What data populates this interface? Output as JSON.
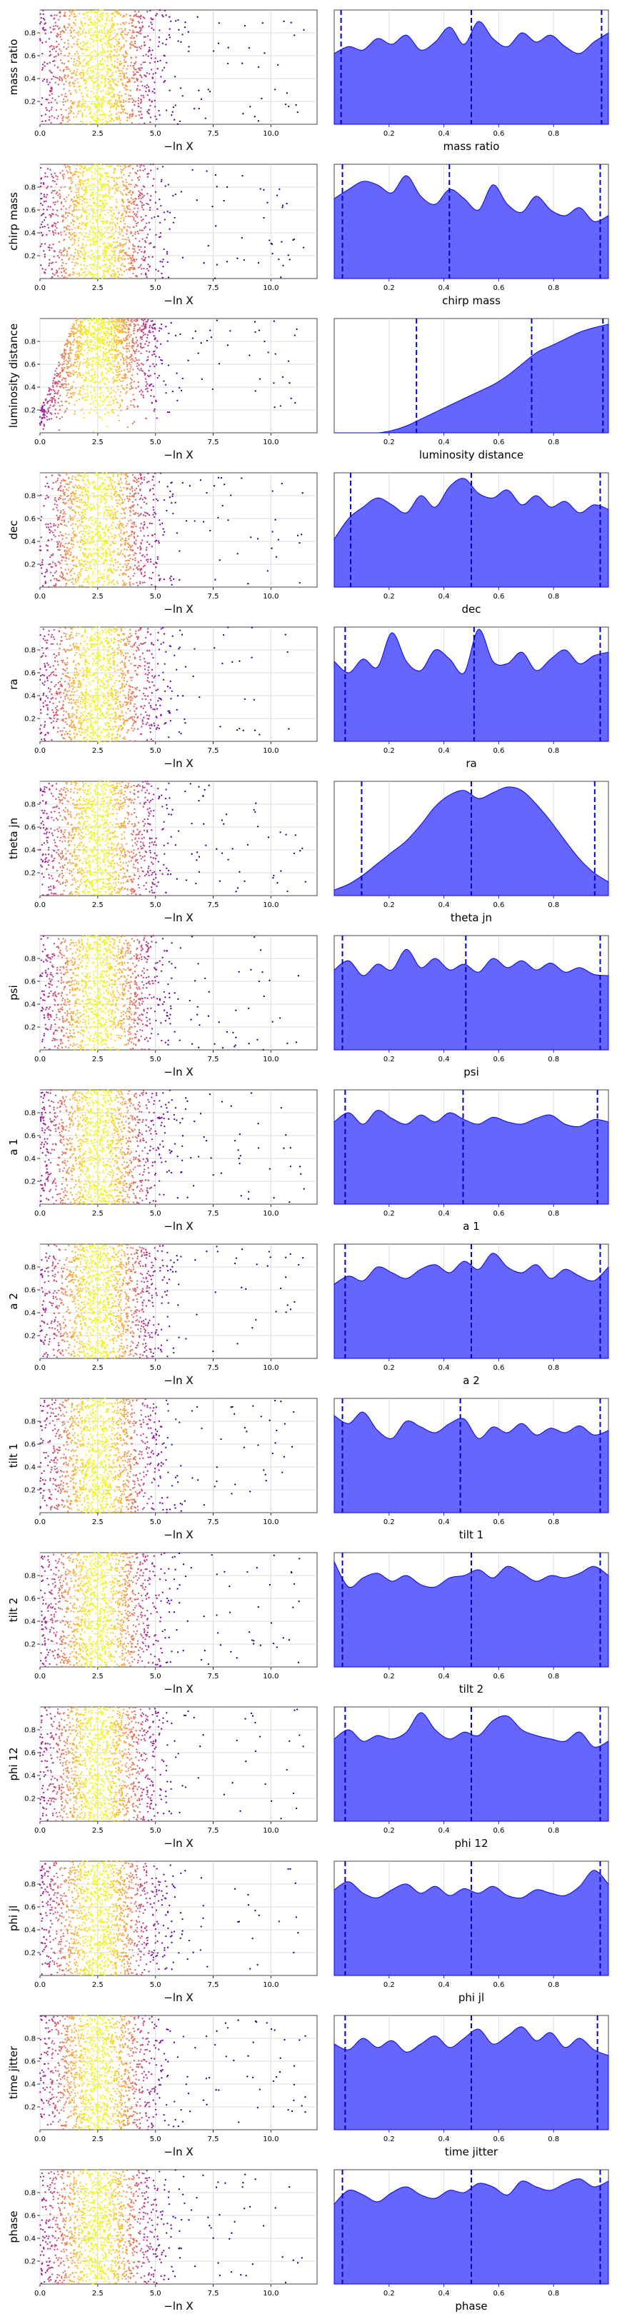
{
  "figure": {
    "scatter_xlabel": "−ln X",
    "colors": {
      "density_fill": "#6666ff",
      "density_edge": "#0000ff",
      "quantile_line": "#0000cc",
      "scatter_colormap": [
        "#0d0887",
        "#5b02a3",
        "#9a179b",
        "#cb4678",
        "#eb7852",
        "#fbb32f",
        "#f0f921"
      ]
    }
  },
  "chart_data": [
    {
      "type": "scatter",
      "ylabel": "mass ratio",
      "xlabel": "−ln X",
      "xticks": [
        "0.0",
        "2.5",
        "5.0",
        "7.5",
        "10.0"
      ],
      "yticks": [
        "0.2",
        "0.4",
        "0.6",
        "0.8"
      ],
      "xlim": [
        0,
        12
      ],
      "ylim": [
        0,
        1
      ],
      "grid": true,
      "density": {
        "type": "area",
        "xlabel": "mass ratio",
        "xticks": [
          "0.2",
          "0.4",
          "0.6",
          "0.8"
        ],
        "xlim": [
          0,
          1
        ],
        "profile": [
          0.62,
          0.68,
          0.65,
          0.75,
          0.7,
          0.78,
          0.65,
          0.72,
          0.85,
          0.7,
          0.9,
          0.75,
          0.68,
          0.8,
          0.72,
          0.78,
          0.68,
          0.62,
          0.72,
          0.8
        ],
        "quantiles": [
          0.025,
          0.5,
          0.975
        ]
      }
    },
    {
      "type": "scatter",
      "ylabel": "chirp mass",
      "xlabel": "−ln X",
      "xticks": [
        "0.0",
        "2.5",
        "5.0",
        "7.5",
        "10.0"
      ],
      "yticks": [
        "0.2",
        "0.4",
        "0.6",
        "0.8"
      ],
      "xlim": [
        0,
        12
      ],
      "ylim": [
        0,
        1
      ],
      "grid": true,
      "density": {
        "type": "area",
        "xlabel": "chirp mass",
        "xticks": [
          "0.2",
          "0.4",
          "0.6",
          "0.8"
        ],
        "xlim": [
          0,
          1
        ],
        "profile": [
          0.7,
          0.78,
          0.85,
          0.82,
          0.75,
          0.9,
          0.72,
          0.65,
          0.78,
          0.7,
          0.6,
          0.82,
          0.65,
          0.58,
          0.72,
          0.6,
          0.55,
          0.62,
          0.5,
          0.55
        ],
        "quantiles": [
          0.03,
          0.42,
          0.97
        ]
      }
    },
    {
      "type": "scatter",
      "ylabel": "luminosity distance",
      "xlabel": "−ln X",
      "xticks": [
        "0.0",
        "2.5",
        "5.0",
        "7.5",
        "10.0"
      ],
      "yticks": [
        "0.2",
        "0.4",
        "0.6",
        "0.8"
      ],
      "xlim": [
        0,
        12
      ],
      "ylim": [
        0,
        1
      ],
      "grid": true,
      "density": {
        "type": "area",
        "xlabel": "luminosity distance",
        "xticks": [
          "0.2",
          "0.4",
          "0.6",
          "0.8"
        ],
        "xlim": [
          0,
          1
        ],
        "profile": [
          0.0,
          0.0,
          0.0,
          0.0,
          0.02,
          0.06,
          0.12,
          0.18,
          0.24,
          0.3,
          0.36,
          0.42,
          0.5,
          0.6,
          0.7,
          0.76,
          0.82,
          0.88,
          0.92,
          0.95
        ],
        "quantiles": [
          0.3,
          0.72,
          0.98
        ]
      }
    },
    {
      "type": "scatter",
      "ylabel": "dec",
      "xlabel": "−ln X",
      "xticks": [
        "0.0",
        "2.5",
        "5.0",
        "7.5",
        "10.0"
      ],
      "yticks": [
        "0.2",
        "0.4",
        "0.6",
        "0.8"
      ],
      "xlim": [
        0,
        12
      ],
      "ylim": [
        0,
        1
      ],
      "grid": true,
      "density": {
        "type": "area",
        "xlabel": "dec",
        "xticks": [
          "0.2",
          "0.4",
          "0.6",
          "0.8"
        ],
        "xlim": [
          0,
          1
        ],
        "profile": [
          0.42,
          0.6,
          0.7,
          0.78,
          0.72,
          0.65,
          0.8,
          0.7,
          0.88,
          0.95,
          0.82,
          0.78,
          0.85,
          0.72,
          0.8,
          0.7,
          0.75,
          0.65,
          0.72,
          0.68
        ],
        "quantiles": [
          0.06,
          0.5,
          0.97
        ]
      }
    },
    {
      "type": "scatter",
      "ylabel": "ra",
      "xlabel": "−ln X",
      "xticks": [
        "0.0",
        "2.5",
        "5.0",
        "7.5",
        "10.0"
      ],
      "yticks": [
        "0.2",
        "0.4",
        "0.6",
        "0.8"
      ],
      "xlim": [
        0,
        12
      ],
      "ylim": [
        0,
        1
      ],
      "grid": true,
      "density": {
        "type": "area",
        "xlabel": "ra",
        "xticks": [
          "0.2",
          "0.4",
          "0.6",
          "0.8"
        ],
        "xlim": [
          0,
          1
        ],
        "profile": [
          0.7,
          0.6,
          0.72,
          0.65,
          0.95,
          0.7,
          0.62,
          0.8,
          0.72,
          0.6,
          0.98,
          0.7,
          0.68,
          0.78,
          0.62,
          0.72,
          0.8,
          0.68,
          0.75,
          0.78
        ],
        "quantiles": [
          0.04,
          0.51,
          0.97
        ]
      }
    },
    {
      "type": "scatter",
      "ylabel": "theta jn",
      "xlabel": "−ln X",
      "xticks": [
        "0.0",
        "2.5",
        "5.0",
        "7.5",
        "10.0"
      ],
      "yticks": [
        "0.2",
        "0.4",
        "0.6",
        "0.8"
      ],
      "xlim": [
        0,
        12
      ],
      "ylim": [
        0,
        1
      ],
      "grid": true,
      "density": {
        "type": "area",
        "xlabel": "theta jn",
        "xticks": [
          "0.2",
          "0.4",
          "0.6",
          "0.8"
        ],
        "xlim": [
          0,
          1
        ],
        "profile": [
          0.05,
          0.1,
          0.18,
          0.28,
          0.38,
          0.48,
          0.62,
          0.78,
          0.88,
          0.92,
          0.85,
          0.9,
          0.95,
          0.92,
          0.8,
          0.65,
          0.48,
          0.32,
          0.2,
          0.12
        ],
        "quantiles": [
          0.1,
          0.5,
          0.95
        ]
      }
    },
    {
      "type": "scatter",
      "ylabel": "psi",
      "xlabel": "−ln X",
      "xticks": [
        "0.0",
        "2.5",
        "5.0",
        "7.5",
        "10.0"
      ],
      "yticks": [
        "0.2",
        "0.4",
        "0.6",
        "0.8"
      ],
      "xlim": [
        0,
        12
      ],
      "ylim": [
        0,
        1
      ],
      "grid": true,
      "density": {
        "type": "area",
        "xlabel": "psi",
        "xticks": [
          "0.2",
          "0.4",
          "0.6",
          "0.8"
        ],
        "xlim": [
          0,
          1
        ],
        "profile": [
          0.7,
          0.78,
          0.65,
          0.75,
          0.7,
          0.88,
          0.72,
          0.8,
          0.7,
          0.75,
          0.68,
          0.8,
          0.72,
          0.78,
          0.7,
          0.76,
          0.68,
          0.72,
          0.66,
          0.65
        ],
        "quantiles": [
          0.03,
          0.48,
          0.97
        ]
      }
    },
    {
      "type": "scatter",
      "ylabel": "a 1",
      "xlabel": "−ln X",
      "xticks": [
        "0.0",
        "2.5",
        "5.0",
        "7.5",
        "10.0"
      ],
      "yticks": [
        "0.2",
        "0.4",
        "0.6",
        "0.8"
      ],
      "xlim": [
        0,
        12
      ],
      "ylim": [
        0,
        1
      ],
      "grid": true,
      "density": {
        "type": "area",
        "xlabel": "a 1",
        "xticks": [
          "0.2",
          "0.4",
          "0.6",
          "0.8"
        ],
        "xlim": [
          0,
          1
        ],
        "profile": [
          0.72,
          0.8,
          0.7,
          0.82,
          0.75,
          0.7,
          0.78,
          0.72,
          0.8,
          0.74,
          0.7,
          0.76,
          0.72,
          0.7,
          0.75,
          0.78,
          0.7,
          0.68,
          0.74,
          0.72
        ],
        "quantiles": [
          0.04,
          0.47,
          0.96
        ]
      }
    },
    {
      "type": "scatter",
      "ylabel": "a 2",
      "xlabel": "−ln X",
      "xticks": [
        "0.0",
        "2.5",
        "5.0",
        "7.5",
        "10.0"
      ],
      "yticks": [
        "0.2",
        "0.4",
        "0.6",
        "0.8"
      ],
      "xlim": [
        0,
        12
      ],
      "ylim": [
        0,
        1
      ],
      "grid": true,
      "density": {
        "type": "area",
        "xlabel": "a 2",
        "xticks": [
          "0.2",
          "0.4",
          "0.6",
          "0.8"
        ],
        "xlim": [
          0,
          1
        ],
        "profile": [
          0.65,
          0.72,
          0.68,
          0.8,
          0.75,
          0.7,
          0.78,
          0.82,
          0.75,
          0.85,
          0.78,
          0.92,
          0.8,
          0.75,
          0.82,
          0.7,
          0.78,
          0.72,
          0.68,
          0.8
        ],
        "quantiles": [
          0.04,
          0.5,
          0.97
        ]
      }
    },
    {
      "type": "scatter",
      "ylabel": "tilt 1",
      "xlabel": "−ln X",
      "xticks": [
        "0.0",
        "2.5",
        "5.0",
        "7.5",
        "10.0"
      ],
      "yticks": [
        "0.2",
        "0.4",
        "0.6",
        "0.8"
      ],
      "xlim": [
        0,
        12
      ],
      "ylim": [
        0,
        1
      ],
      "grid": true,
      "density": {
        "type": "area",
        "xlabel": "tilt 1",
        "xticks": [
          "0.2",
          "0.4",
          "0.6",
          "0.8"
        ],
        "xlim": [
          0,
          1
        ],
        "profile": [
          0.85,
          0.78,
          0.88,
          0.72,
          0.65,
          0.8,
          0.75,
          0.7,
          0.78,
          0.82,
          0.65,
          0.75,
          0.7,
          0.78,
          0.68,
          0.74,
          0.7,
          0.76,
          0.68,
          0.72
        ],
        "quantiles": [
          0.03,
          0.46,
          0.97
        ]
      }
    },
    {
      "type": "scatter",
      "ylabel": "tilt 2",
      "xlabel": "−ln X",
      "xticks": [
        "0.0",
        "2.5",
        "5.0",
        "7.5",
        "10.0"
      ],
      "yticks": [
        "0.2",
        "0.4",
        "0.6",
        "0.8"
      ],
      "xlim": [
        0,
        12
      ],
      "ylim": [
        0,
        1
      ],
      "grid": true,
      "density": {
        "type": "area",
        "xlabel": "tilt 2",
        "xticks": [
          "0.2",
          "0.4",
          "0.6",
          "0.8"
        ],
        "xlim": [
          0,
          1
        ],
        "profile": [
          0.92,
          0.7,
          0.78,
          0.82,
          0.75,
          0.8,
          0.72,
          0.7,
          0.78,
          0.8,
          0.85,
          0.78,
          0.88,
          0.82,
          0.75,
          0.8,
          0.78,
          0.82,
          0.88,
          0.8
        ],
        "quantiles": [
          0.03,
          0.5,
          0.97
        ]
      }
    },
    {
      "type": "scatter",
      "ylabel": "phi 12",
      "xlabel": "−ln X",
      "xticks": [
        "0.0",
        "2.5",
        "5.0",
        "7.5",
        "10.0"
      ],
      "yticks": [
        "0.2",
        "0.4",
        "0.6",
        "0.8"
      ],
      "xlim": [
        0,
        12
      ],
      "ylim": [
        0,
        1
      ],
      "grid": true,
      "density": {
        "type": "area",
        "xlabel": "phi 12",
        "xticks": [
          "0.2",
          "0.4",
          "0.6",
          "0.8"
        ],
        "xlim": [
          0,
          1
        ],
        "profile": [
          0.72,
          0.8,
          0.7,
          0.75,
          0.72,
          0.78,
          0.95,
          0.8,
          0.72,
          0.78,
          0.75,
          0.88,
          0.92,
          0.8,
          0.75,
          0.72,
          0.7,
          0.78,
          0.65,
          0.7
        ],
        "quantiles": [
          0.04,
          0.5,
          0.97
        ]
      }
    },
    {
      "type": "scatter",
      "ylabel": "phi jl",
      "xlabel": "−ln X",
      "xticks": [
        "0.0",
        "2.5",
        "5.0",
        "7.5",
        "10.0"
      ],
      "yticks": [
        "0.2",
        "0.4",
        "0.6",
        "0.8"
      ],
      "xlim": [
        0,
        12
      ],
      "ylim": [
        0,
        1
      ],
      "grid": true,
      "density": {
        "type": "area",
        "xlabel": "phi jl",
        "xticks": [
          "0.2",
          "0.4",
          "0.6",
          "0.8"
        ],
        "xlim": [
          0,
          1
        ],
        "profile": [
          0.75,
          0.82,
          0.72,
          0.68,
          0.75,
          0.8,
          0.72,
          0.78,
          0.7,
          0.76,
          0.72,
          0.78,
          0.7,
          0.68,
          0.75,
          0.72,
          0.7,
          0.78,
          0.92,
          0.8
        ],
        "quantiles": [
          0.04,
          0.5,
          0.97
        ]
      }
    },
    {
      "type": "scatter",
      "ylabel": "time jitter",
      "xlabel": "−ln X",
      "xticks": [
        "0.0",
        "2.5",
        "5.0",
        "7.5",
        "10.0"
      ],
      "yticks": [
        "0.2",
        "0.4",
        "0.6",
        "0.8"
      ],
      "xlim": [
        0,
        12
      ],
      "ylim": [
        0,
        1
      ],
      "grid": true,
      "density": {
        "type": "area",
        "xlabel": "time jitter",
        "xticks": [
          "0.2",
          "0.4",
          "0.6",
          "0.8"
        ],
        "xlim": [
          0,
          1
        ],
        "profile": [
          0.75,
          0.7,
          0.8,
          0.72,
          0.78,
          0.68,
          0.75,
          0.82,
          0.72,
          0.8,
          0.88,
          0.75,
          0.82,
          0.9,
          0.78,
          0.85,
          0.72,
          0.8,
          0.7,
          0.65
        ],
        "quantiles": [
          0.04,
          0.5,
          0.96
        ]
      }
    },
    {
      "type": "scatter",
      "ylabel": "phase",
      "xlabel": "−ln X",
      "xticks": [
        "0.0",
        "2.5",
        "5.0",
        "7.5",
        "10.0"
      ],
      "yticks": [
        "0.2",
        "0.4",
        "0.6",
        "0.8"
      ],
      "xlim": [
        0,
        12
      ],
      "ylim": [
        0,
        1
      ],
      "grid": true,
      "density": {
        "type": "area",
        "xlabel": "phase",
        "xticks": [
          "0.2",
          "0.4",
          "0.6",
          "0.8"
        ],
        "xlim": [
          0,
          1
        ],
        "profile": [
          0.7,
          0.82,
          0.78,
          0.72,
          0.8,
          0.85,
          0.78,
          0.75,
          0.82,
          0.8,
          0.88,
          0.85,
          0.78,
          0.9,
          0.85,
          0.82,
          0.88,
          0.92,
          0.85,
          0.9
        ],
        "quantiles": [
          0.03,
          0.5,
          0.97
        ]
      }
    }
  ]
}
